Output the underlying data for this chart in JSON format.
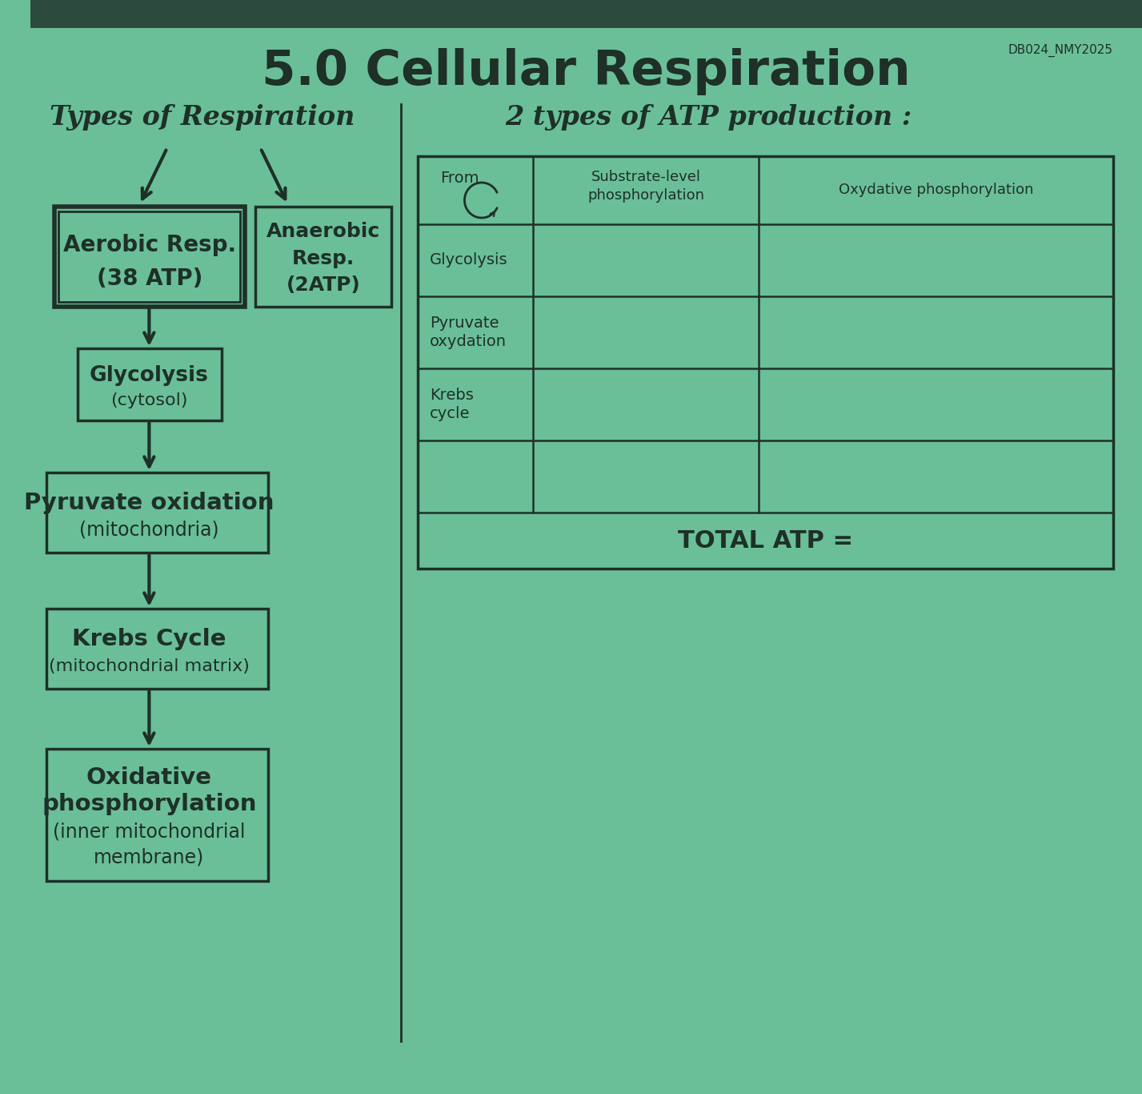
{
  "title": "5.0 Cellular Respiration",
  "watermark": "DB024_NMY2025",
  "bg_color": "#6abf99",
  "top_bar_color": "#2d4a3e",
  "text_color": "#1e3028",
  "left_section_title": "Types of Respiration",
  "right_section_title": "2 types of ATP production :",
  "aerobic_line1": "Aerobic Resp.",
  "aerobic_line2": "(38 ATP)",
  "anaerobic_line1": "Anaerobic",
  "anaerobic_line2": "Resp.",
  "anaerobic_line3": "(2ATP)",
  "glycolysis_line1": "Glycolysis",
  "glycolysis_line2": "(cytosol)",
  "pyruvate_line1": "Pyruvate oxidation",
  "pyruvate_line2": "(mitochondria)",
  "krebs_line1": "Krebs Cycle",
  "krebs_line2": "(mitochondrial matrix)",
  "oxidative_line1": "Oxidative",
  "oxidative_line2": "phosphorylation",
  "oxidative_line3": "(inner mitochondrial",
  "oxidative_line4": "membrane)",
  "header_col0": "From",
  "header_col1": "Substrate-level\nphosphorylation",
  "header_col2": "Oxydative phosphorylation",
  "row1": "Glycolysis",
  "row2": "Pyruvate\noxydation",
  "row3": "Krebs\ncycle",
  "row4": "",
  "total_label": "TOTAL ATP ="
}
